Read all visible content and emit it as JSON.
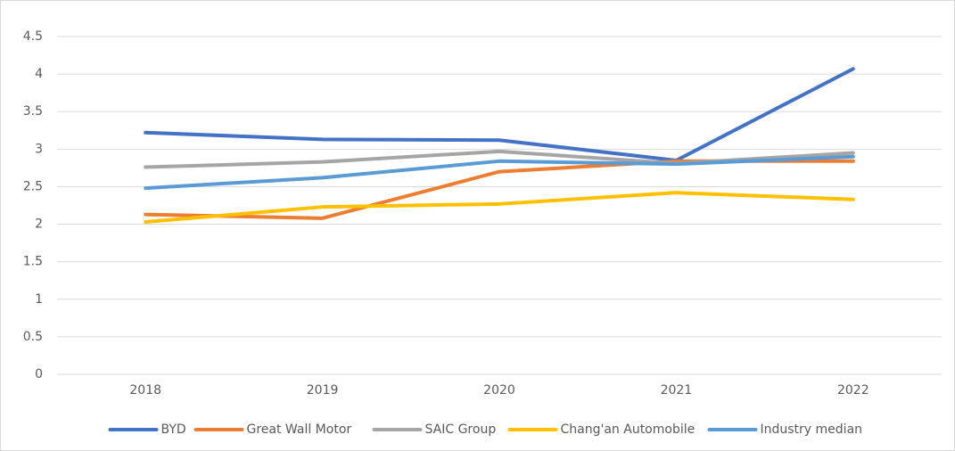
{
  "chart_data": {
    "type": "line",
    "categories": [
      "2018",
      "2019",
      "2020",
      "2021",
      "2022"
    ],
    "series": [
      {
        "name": "BYD",
        "color": "#4472c4",
        "values": [
          3.22,
          3.13,
          3.12,
          2.85,
          4.07
        ]
      },
      {
        "name": "Great Wall Motor",
        "color": "#ed7d31",
        "values": [
          2.13,
          2.08,
          2.7,
          2.84,
          2.84
        ]
      },
      {
        "name": "SAIC Group",
        "color": "#a5a5a5",
        "values": [
          2.76,
          2.83,
          2.97,
          2.81,
          2.95
        ]
      },
      {
        "name": "Chang'an Automobile",
        "color": "#ffc000",
        "values": [
          2.03,
          2.23,
          2.27,
          2.42,
          2.33
        ]
      },
      {
        "name": "Industry median",
        "color": "#5b9bd5",
        "values": [
          2.48,
          2.62,
          2.84,
          2.8,
          2.9
        ]
      }
    ],
    "ylim": [
      0,
      4.5
    ],
    "yticks": [
      0,
      0.5,
      1,
      1.5,
      2,
      2.5,
      3,
      3.5,
      4,
      4.5
    ],
    "grid": true,
    "legend": "bottom"
  }
}
